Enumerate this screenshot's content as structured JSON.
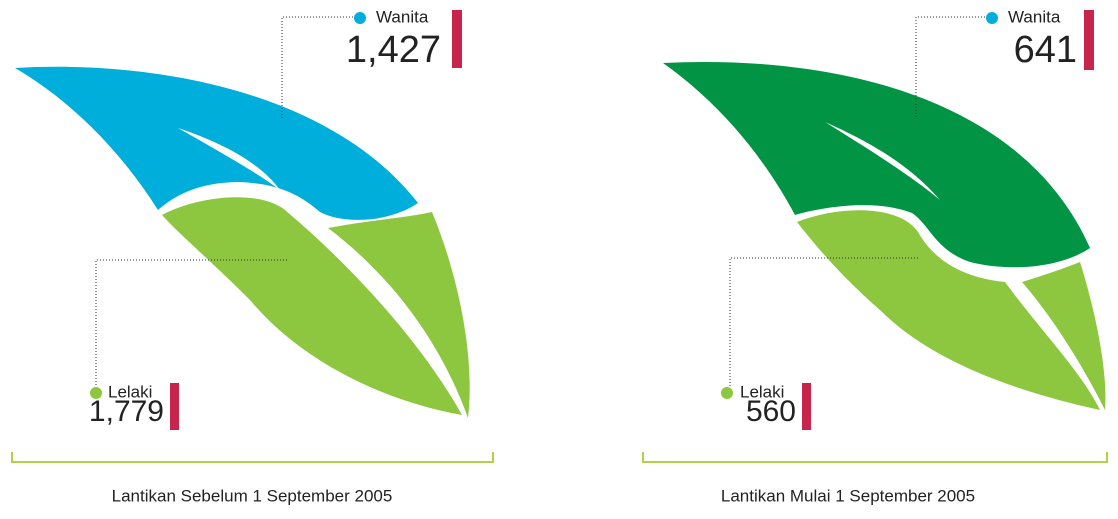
{
  "panels": [
    {
      "female": {
        "label": "Wanita",
        "value": "1,427"
      },
      "male": {
        "label": "Lelaki",
        "value": "1,779"
      },
      "caption": "Lantikan Sebelum 1 September 2005"
    },
    {
      "female": {
        "label": "Wanita",
        "value": "641"
      },
      "male": {
        "label": "Lelaki",
        "value": "560"
      },
      "caption": "Lantikan Mulai 1 September 2005"
    }
  ]
}
